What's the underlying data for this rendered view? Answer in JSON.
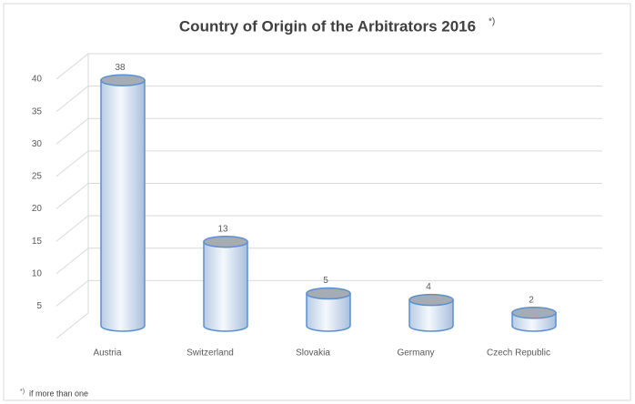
{
  "chart_data": {
    "type": "bar",
    "title": "Country of Origin of the Arbitrators 2016",
    "title_note": "*)",
    "categories": [
      "Austria",
      "Switzerland",
      "Slovakia",
      "Germany",
      "Czech Republic"
    ],
    "values": [
      38,
      13,
      5,
      4,
      2
    ],
    "color": "#5b8fcf",
    "ylim": [
      0,
      40
    ],
    "yticks": [
      5,
      10,
      15,
      20,
      25,
      30,
      35,
      40
    ],
    "grid": true,
    "footnote_mark": "*)",
    "footnote": "if more than one"
  }
}
